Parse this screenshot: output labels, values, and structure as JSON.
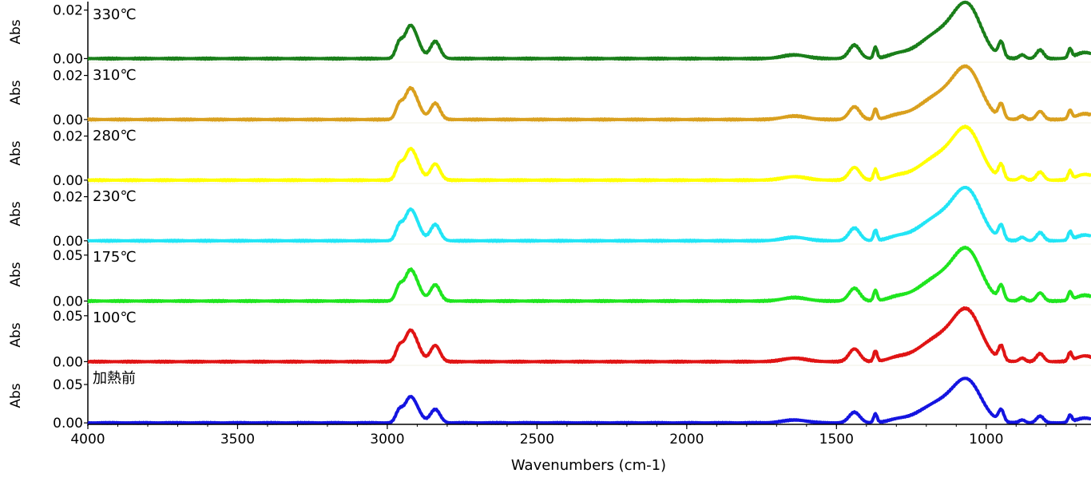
{
  "chart_data": {
    "type": "line",
    "layout": "stacked-panels",
    "xlabel": "Wavenumbers (cm-1)",
    "xlim": [
      4000,
      650
    ],
    "x_reversed": true,
    "x_ticks": [
      {
        "value": 4000,
        "label": "4000"
      },
      {
        "value": 3500,
        "label": "3500"
      },
      {
        "value": 3000,
        "label": "3000"
      },
      {
        "value": 2500,
        "label": "2500"
      },
      {
        "value": 2000,
        "label": "2000"
      },
      {
        "value": 1500,
        "label": "1500"
      },
      {
        "value": 1000,
        "label": "1000"
      }
    ],
    "grid": false,
    "series": [
      {
        "name": "330℃",
        "ylabel": "Abs",
        "color": "#1a7f1a",
        "ylim": [
          -0.0015,
          0.0235
        ],
        "y_ticks": [
          {
            "value": 0.0,
            "label": "0.00"
          },
          {
            "value": 0.02,
            "label": "0.02"
          }
        ],
        "peak": 0.024,
        "baseline": 0.0
      },
      {
        "name": "310℃",
        "ylabel": "Abs",
        "color": "#d9a01e",
        "ylim": [
          -0.0015,
          0.026
        ],
        "y_ticks": [
          {
            "value": 0.0,
            "label": "0.00"
          },
          {
            "value": 0.02,
            "label": "0.02"
          }
        ],
        "peak": 0.025,
        "baseline": 0.0
      },
      {
        "name": "280℃",
        "ylabel": "Abs",
        "color": "#ffff00",
        "ylim": [
          -0.0015,
          0.026
        ],
        "y_ticks": [
          {
            "value": 0.0,
            "label": "0.00"
          },
          {
            "value": 0.02,
            "label": "0.02"
          }
        ],
        "peak": 0.025,
        "baseline": 0.0
      },
      {
        "name": "230℃",
        "ylabel": "Abs",
        "color": "#22e5f5",
        "ylim": [
          -0.0015,
          0.026
        ],
        "y_ticks": [
          {
            "value": 0.0,
            "label": "0.00"
          },
          {
            "value": 0.02,
            "label": "0.02"
          }
        ],
        "peak": 0.025,
        "baseline": 0.0
      },
      {
        "name": "175℃",
        "ylabel": "Abs",
        "color": "#1fe51f",
        "ylim": [
          -0.004,
          0.062
        ],
        "y_ticks": [
          {
            "value": 0.0,
            "label": "0.00"
          },
          {
            "value": 0.05,
            "label": "0.05"
          }
        ],
        "peak": 0.06,
        "baseline": 0.0
      },
      {
        "name": "100℃",
        "ylabel": "Abs",
        "color": "#e01414",
        "ylim": [
          -0.004,
          0.062
        ],
        "y_ticks": [
          {
            "value": 0.0,
            "label": "0.00"
          },
          {
            "value": 0.05,
            "label": "0.05"
          }
        ],
        "peak": 0.06,
        "baseline": 0.0
      },
      {
        "name": "加熱前",
        "ylabel": "Abs",
        "color": "#1414e0",
        "ylim": [
          -0.004,
          0.075
        ],
        "y_ticks": [
          {
            "value": 0.0,
            "label": "0.00"
          },
          {
            "value": 0.05,
            "label": "0.05"
          }
        ],
        "peak": 0.06,
        "baseline": 0.0
      }
    ],
    "spectrum_shape": {
      "note_units": "relative to panel peak",
      "bands": [
        {
          "center": 2960,
          "width": 12,
          "height": 0.25
        },
        {
          "center": 2930,
          "width": 15,
          "height": 0.28
        },
        {
          "center": 2910,
          "width": 20,
          "height": 0.36
        },
        {
          "center": 2840,
          "width": 16,
          "height": 0.28
        },
        {
          "center": 1640,
          "width": 40,
          "height": 0.06
        },
        {
          "center": 1440,
          "width": 18,
          "height": 0.22
        },
        {
          "center": 1370,
          "width": 6,
          "height": 0.18
        },
        {
          "center": 1300,
          "width": 30,
          "height": 0.05
        },
        {
          "center": 1150,
          "width": 70,
          "height": 0.42
        },
        {
          "center": 1060,
          "width": 45,
          "height": 0.72
        },
        {
          "center": 950,
          "width": 9,
          "height": 0.24
        },
        {
          "center": 880,
          "width": 10,
          "height": 0.06
        },
        {
          "center": 820,
          "width": 12,
          "height": 0.14
        },
        {
          "center": 720,
          "width": 6,
          "height": 0.14
        },
        {
          "center": 670,
          "width": 30,
          "height": 0.1
        }
      ]
    }
  }
}
